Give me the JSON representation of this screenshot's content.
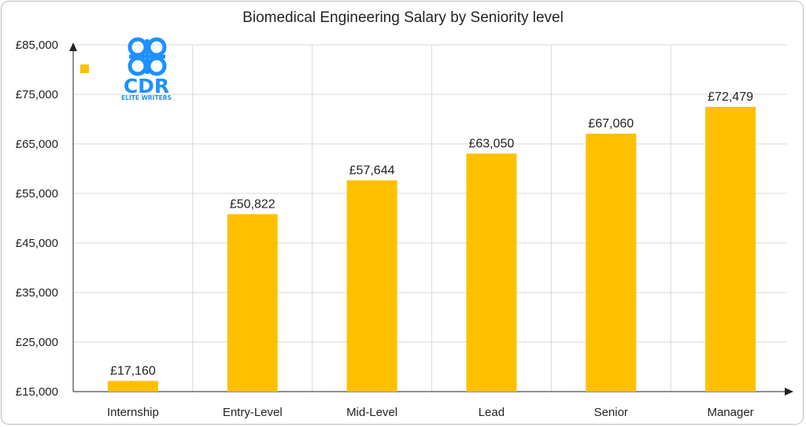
{
  "chart_data": {
    "type": "bar",
    "title": "Biomedical Engineering Salary by Seniority level",
    "categories": [
      "Internship",
      "Entry-Level",
      "Mid-Level",
      "Lead",
      "Senior",
      "Manager"
    ],
    "values": [
      17160,
      50822,
      57644,
      63050,
      67060,
      72479
    ],
    "value_labels": [
      "£17,160",
      "£50,822",
      "£57,644",
      "£63,050",
      "£67,060",
      "£72,479"
    ],
    "ylim": [
      15000,
      85000
    ],
    "yticks": [
      15000,
      25000,
      35000,
      45000,
      55000,
      65000,
      75000,
      85000
    ],
    "ytick_labels": [
      "£15,000",
      "£25,000",
      "£35,000",
      "£45,000",
      "£55,000",
      "£65,000",
      "£75,000",
      "£85,000"
    ],
    "grid": true,
    "legend": "top-left",
    "bar_color": "#ffc000"
  },
  "logo": {
    "main_text": "CDR",
    "sub_text": "ELITE WRITERS",
    "color": "#1e90ff"
  }
}
